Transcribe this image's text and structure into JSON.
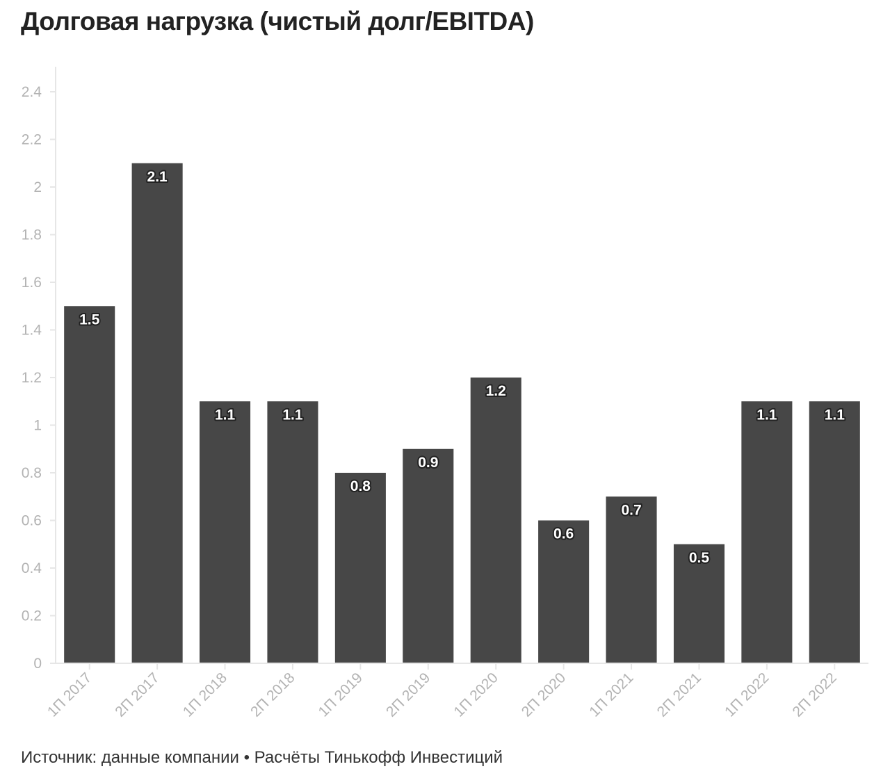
{
  "title": "Долговая нагрузка (чистый долг/EBITDA)",
  "source": "Источник: данные компании • Расчёты Тинькофф Инвестиций",
  "colors": {
    "bar": "#474747",
    "axis": "#e6e6e6",
    "tick_text": "#b3b3b3"
  },
  "chart_data": {
    "type": "bar",
    "title": "Долговая нагрузка (чистый долг/EBITDA)",
    "xlabel": "",
    "ylabel": "",
    "categories": [
      "1П 2017",
      "2П 2017",
      "1П 2018",
      "2П 2018",
      "1П 2019",
      "2П 2019",
      "1П 2020",
      "2П 2020",
      "1П 2021",
      "2П 2021",
      "1П 2022",
      "2П 2022"
    ],
    "values": [
      1.5,
      2.1,
      1.1,
      1.1,
      0.8,
      0.9,
      1.2,
      0.6,
      0.7,
      0.5,
      1.1,
      1.1
    ],
    "data_labels": [
      "1.5",
      "2.1",
      "1.1",
      "1.1",
      "0.8",
      "0.9",
      "1.2",
      "0.6",
      "0.7",
      "0.5",
      "1.1",
      "1.1"
    ],
    "ylim": [
      0,
      2.5
    ],
    "yticks": [
      0,
      0.2,
      0.4,
      0.6,
      0.8,
      1,
      1.2,
      1.4,
      1.6,
      1.8,
      2,
      2.2,
      2.4
    ],
    "ytick_labels": [
      "0",
      "0.2",
      "0.4",
      "0.6",
      "0.8",
      "1",
      "1.2",
      "1.4",
      "1.6",
      "1.8",
      "2",
      "2.2",
      "2.4"
    ],
    "grid": false,
    "legend": "none"
  }
}
